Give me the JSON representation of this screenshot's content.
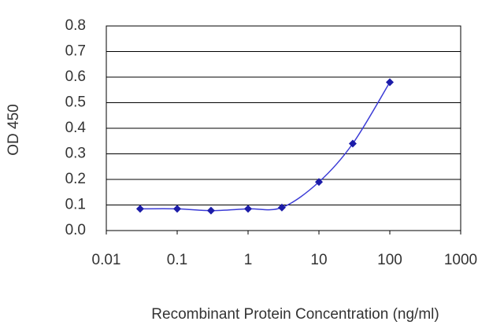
{
  "chart_data": {
    "type": "scatter",
    "x_label": "Recombinant Protein Concentration (ng/ml)",
    "y_label": "OD 450",
    "x_scale": "log",
    "series": [
      {
        "name": "OD 450",
        "color": "#1c1ca8",
        "x": [
          0.03,
          0.1,
          0.3,
          1,
          3,
          10,
          30,
          100
        ],
        "values": [
          0.085,
          0.085,
          0.078,
          0.085,
          0.09,
          0.19,
          0.34,
          0.58
        ]
      }
    ],
    "xlim": [
      0.01,
      1000
    ],
    "xticks": [
      0.01,
      0.1,
      1,
      10,
      100,
      1000
    ],
    "ylim": [
      0,
      0.8
    ],
    "yticks": [
      {
        "value": 0,
        "label": "0.0"
      },
      0.1,
      0.2,
      0.3,
      0.4,
      0.5,
      0.6,
      0.7,
      0.8
    ],
    "grid": true
  }
}
